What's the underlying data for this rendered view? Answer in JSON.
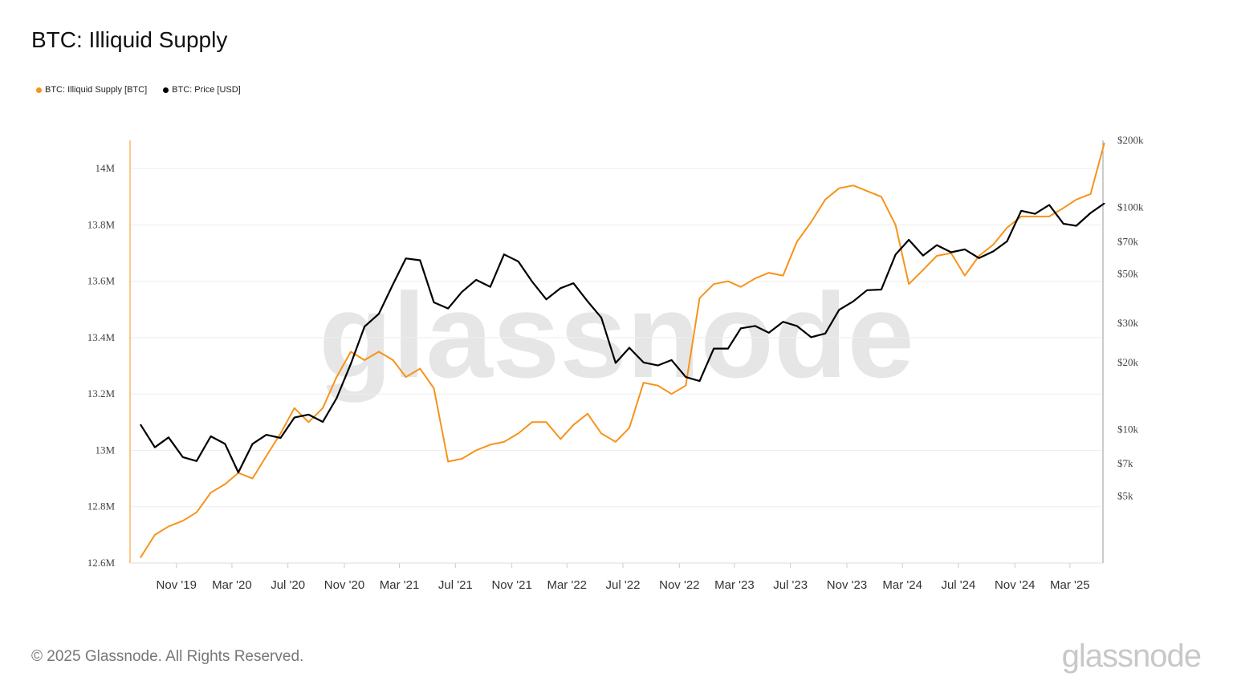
{
  "title": "BTC: Illiquid Supply",
  "footer": "© 2025 Glassnode. All Rights Reserved.",
  "logo": "glassnode",
  "watermark": "glassnode",
  "legend": [
    {
      "label": "BTC: Illiquid Supply [BTC]",
      "color": "#f7931a"
    },
    {
      "label": "BTC: Price [USD]",
      "color": "#000000"
    }
  ],
  "chart_data": {
    "type": "line",
    "title": "BTC: Illiquid Supply",
    "x_range": [
      "2019-07-23",
      "2025-05-12"
    ],
    "x_ticks": [
      {
        "label": "Nov '19",
        "date": "2019-11-01"
      },
      {
        "label": "Mar '20",
        "date": "2020-03-01"
      },
      {
        "label": "Jul '20",
        "date": "2020-07-01"
      },
      {
        "label": "Nov '20",
        "date": "2020-11-01"
      },
      {
        "label": "Mar '21",
        "date": "2021-03-01"
      },
      {
        "label": "Jul '21",
        "date": "2021-07-01"
      },
      {
        "label": "Nov '21",
        "date": "2021-11-01"
      },
      {
        "label": "Mar '22",
        "date": "2022-03-01"
      },
      {
        "label": "Jul '22",
        "date": "2022-07-01"
      },
      {
        "label": "Nov '22",
        "date": "2022-11-01"
      },
      {
        "label": "Mar '23",
        "date": "2023-03-01"
      },
      {
        "label": "Jul '23",
        "date": "2023-07-01"
      },
      {
        "label": "Nov '23",
        "date": "2023-11-01"
      },
      {
        "label": "Mar '24",
        "date": "2024-03-01"
      },
      {
        "label": "Jul '24",
        "date": "2024-07-01"
      },
      {
        "label": "Nov '24",
        "date": "2024-11-01"
      },
      {
        "label": "Mar '25",
        "date": "2025-03-01"
      }
    ],
    "y_left": {
      "scale": "linear",
      "range": [
        12.6,
        14.1
      ],
      "ticks": [
        {
          "v": 12.6,
          "label": "12.6M"
        },
        {
          "v": 12.8,
          "label": "12.8M"
        },
        {
          "v": 13.0,
          "label": "13M"
        },
        {
          "v": 13.2,
          "label": "13.2M"
        },
        {
          "v": 13.4,
          "label": "13.4M"
        },
        {
          "v": 13.6,
          "label": "13.6M"
        },
        {
          "v": 13.8,
          "label": "13.8M"
        },
        {
          "v": 14.0,
          "label": "14M"
        }
      ]
    },
    "y_right": {
      "scale": "log",
      "range": [
        2500,
        200000
      ],
      "ticks": [
        {
          "v": 5000,
          "label": "$5k"
        },
        {
          "v": 7000,
          "label": "$7k"
        },
        {
          "v": 10000,
          "label": "$10k"
        },
        {
          "v": 20000,
          "label": "$20k"
        },
        {
          "v": 30000,
          "label": "$30k"
        },
        {
          "v": 50000,
          "label": "$50k"
        },
        {
          "v": 70000,
          "label": "$70k"
        },
        {
          "v": 100000,
          "label": "$100k"
        },
        {
          "v": 200000,
          "label": "$200k"
        }
      ]
    },
    "grid": true,
    "legend_position": "top-left",
    "x": [
      "2019-08",
      "2019-09",
      "2019-10",
      "2019-11",
      "2019-12",
      "2020-01",
      "2020-02",
      "2020-03",
      "2020-04",
      "2020-05",
      "2020-06",
      "2020-07",
      "2020-08",
      "2020-09",
      "2020-10",
      "2020-11",
      "2020-12",
      "2021-01",
      "2021-02",
      "2021-03",
      "2021-04",
      "2021-05",
      "2021-06",
      "2021-07",
      "2021-08",
      "2021-09",
      "2021-10",
      "2021-11",
      "2021-12",
      "2022-01",
      "2022-02",
      "2022-03",
      "2022-04",
      "2022-05",
      "2022-06",
      "2022-07",
      "2022-08",
      "2022-09",
      "2022-10",
      "2022-11",
      "2022-12",
      "2023-01",
      "2023-02",
      "2023-03",
      "2023-04",
      "2023-05",
      "2023-06",
      "2023-07",
      "2023-08",
      "2023-09",
      "2023-10",
      "2023-11",
      "2023-12",
      "2024-01",
      "2024-02",
      "2024-03",
      "2024-04",
      "2024-05",
      "2024-06",
      "2024-07",
      "2024-08",
      "2024-09",
      "2024-10",
      "2024-11",
      "2024-12",
      "2025-01",
      "2025-02",
      "2025-03",
      "2025-04",
      "2025-05"
    ],
    "series": [
      {
        "name": "BTC: Illiquid Supply [BTC]",
        "axis": "left",
        "unit": "M BTC",
        "color": "#f7931a",
        "values": [
          12.62,
          12.7,
          12.73,
          12.75,
          12.78,
          12.85,
          12.88,
          12.92,
          12.9,
          12.98,
          13.06,
          13.15,
          13.1,
          13.15,
          13.26,
          13.35,
          13.32,
          13.35,
          13.32,
          13.26,
          13.29,
          13.22,
          12.96,
          12.97,
          13.0,
          13.02,
          13.03,
          13.06,
          13.1,
          13.1,
          13.04,
          13.09,
          13.13,
          13.06,
          13.03,
          13.08,
          13.24,
          13.23,
          13.2,
          13.23,
          13.54,
          13.59,
          13.6,
          13.58,
          13.61,
          13.63,
          13.62,
          13.74,
          13.81,
          13.89,
          13.93,
          13.94,
          13.92,
          13.9,
          13.8,
          13.59,
          13.64,
          13.69,
          13.7,
          13.62,
          13.69,
          13.73,
          13.79,
          13.83,
          13.83,
          13.83,
          13.86,
          13.89,
          13.91,
          14.09
        ]
      },
      {
        "name": "BTC: Price [USD]",
        "axis": "right",
        "unit": "USD",
        "color": "#000000",
        "values": [
          10500,
          8300,
          9200,
          7500,
          7200,
          9300,
          8600,
          6400,
          8600,
          9450,
          9150,
          11300,
          11650,
          10800,
          13800,
          19700,
          29000,
          33100,
          45000,
          58800,
          57700,
          37300,
          35000,
          41500,
          47100,
          43800,
          61300,
          57000,
          46300,
          38500,
          43200,
          45500,
          37700,
          31800,
          19900,
          23300,
          20000,
          19400,
          20500,
          17200,
          16500,
          23100,
          23100,
          28500,
          29200,
          27200,
          30500,
          29200,
          26000,
          27000,
          34500,
          37700,
          42300,
          42600,
          61200,
          71300,
          60600,
          67500,
          62700,
          64600,
          59000,
          63300,
          70200,
          96400,
          93400,
          102400,
          84300,
          82500,
          94200,
          104000
        ]
      }
    ]
  }
}
